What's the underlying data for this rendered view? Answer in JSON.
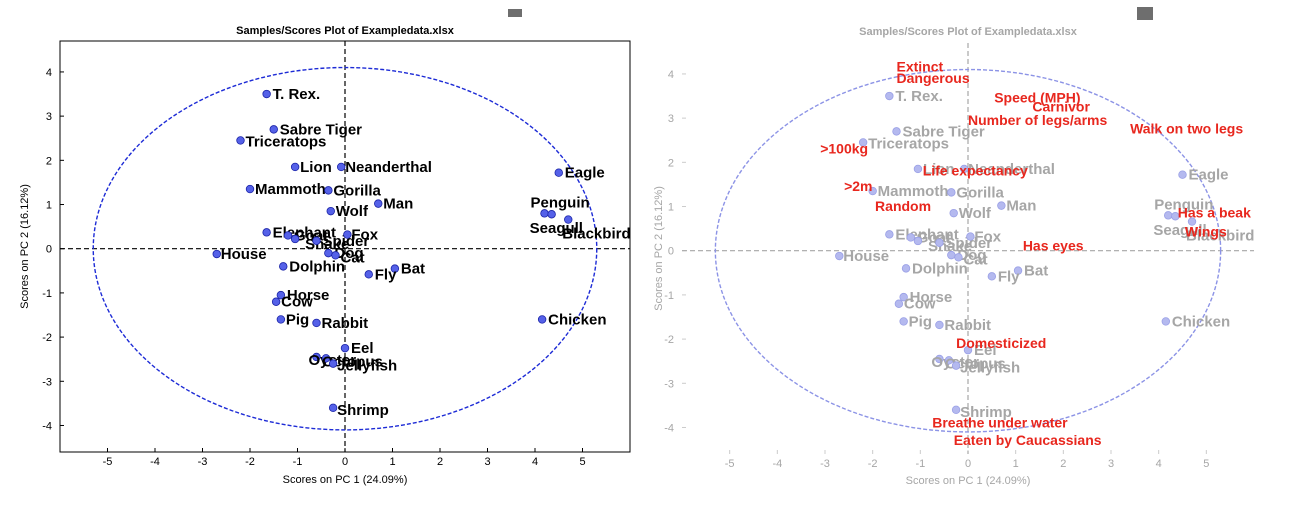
{
  "chart_data": [
    {
      "type": "scatter",
      "title": "Samples/Scores Plot of Exampledata.xlsx",
      "xlabel": "Scores on PC 1 (24.09%)",
      "ylabel": "Scores on PC 2 (16.12%)",
      "xlim": [
        -6,
        6
      ],
      "ylim": [
        -4.6,
        4.7
      ],
      "xticks": [
        "-5",
        "-4",
        "-3",
        "-2",
        "-1",
        "0",
        "1",
        "2",
        "3",
        "4",
        "5"
      ],
      "yticks": [
        "4",
        "3",
        "2",
        "1",
        "0",
        "-1",
        "-2",
        "-3",
        "-4"
      ],
      "colors": {
        "points": "#5561e8",
        "labels": "#000000",
        "ellipse": "#1d2bd6",
        "axes": "#000000"
      },
      "ellipse": {
        "center": [
          0,
          0
        ],
        "rx": 5.3,
        "ry": 4.1
      },
      "points": [
        {
          "label": "T. Rex.",
          "x": -1.65,
          "y": 3.5
        },
        {
          "label": "Sabre Tiger",
          "x": -1.5,
          "y": 2.7
        },
        {
          "label": "Triceratops",
          "x": -2.2,
          "y": 2.45
        },
        {
          "label": "Lion",
          "x": -1.05,
          "y": 1.85
        },
        {
          "label": "Neanderthal",
          "x": -0.08,
          "y": 1.85
        },
        {
          "label": "Mammoth",
          "x": -2.0,
          "y": 1.35
        },
        {
          "label": "Gorilla",
          "x": -0.35,
          "y": 1.32
        },
        {
          "label": "Man",
          "x": 0.7,
          "y": 1.02
        },
        {
          "label": "Wolf",
          "x": -0.3,
          "y": 0.85
        },
        {
          "label": "Eagle",
          "x": 4.5,
          "y": 1.72
        },
        {
          "label": "Penguin",
          "x": 4.2,
          "y": 0.8
        },
        {
          "label": "Seagull",
          "x": 4.35,
          "y": 0.78
        },
        {
          "label": "Blackbird",
          "x": 4.7,
          "y": 0.66
        },
        {
          "label": "Elephant",
          "x": -1.65,
          "y": 0.37
        },
        {
          "label": "Goat",
          "x": -1.2,
          "y": 0.3
        },
        {
          "label": "Snake",
          "x": -1.05,
          "y": 0.22
        },
        {
          "label": "Spider",
          "x": -0.6,
          "y": 0.18
        },
        {
          "label": "Fox",
          "x": 0.05,
          "y": 0.32
        },
        {
          "label": "Dog",
          "x": -0.35,
          "y": -0.1
        },
        {
          "label": "Cat",
          "x": -0.2,
          "y": -0.15
        },
        {
          "label": "House",
          "x": -2.7,
          "y": -0.12
        },
        {
          "label": "Dolphin",
          "x": -1.3,
          "y": -0.4
        },
        {
          "label": "Bat",
          "x": 1.05,
          "y": -0.45
        },
        {
          "label": "Fly",
          "x": 0.5,
          "y": -0.58
        },
        {
          "label": "Horse",
          "x": -1.35,
          "y": -1.05
        },
        {
          "label": "Cow",
          "x": -1.45,
          "y": -1.2
        },
        {
          "label": "Pig",
          "x": -1.35,
          "y": -1.6
        },
        {
          "label": "Rabbit",
          "x": -0.6,
          "y": -1.68
        },
        {
          "label": "Chicken",
          "x": 4.15,
          "y": -1.6
        },
        {
          "label": "Eel",
          "x": 0.0,
          "y": -2.25
        },
        {
          "label": "Oyster",
          "x": -0.6,
          "y": -2.45
        },
        {
          "label": "Octopus",
          "x": -0.4,
          "y": -2.48
        },
        {
          "label": "Jellyfish",
          "x": -0.25,
          "y": -2.6
        },
        {
          "label": "Shrimp",
          "x": -0.25,
          "y": -3.6
        }
      ]
    },
    {
      "type": "scatter",
      "title": "Samples/Scores Plot of Exampledata.xlsx",
      "xlabel": "Scores on PC 1 (24.09%)",
      "ylabel": "Scores on PC 2 (16.12%)",
      "xlim": [
        -6,
        6
      ],
      "ylim": [
        -4.6,
        4.7
      ],
      "xticks": [
        "-5",
        "-4",
        "-3",
        "-2",
        "-1",
        "0",
        "1",
        "2",
        "3",
        "4",
        "5"
      ],
      "yticks": [
        "4",
        "3",
        "2",
        "1",
        "0",
        "-1",
        "-2",
        "-3",
        "-4"
      ],
      "colors": {
        "points": "#b4b9ef",
        "labels": "#a6a6a6",
        "variables": "#e8271e",
        "ellipse": "#8c93e6",
        "axes": "#a6a6a6"
      },
      "ellipse": {
        "center": [
          0,
          0
        ],
        "rx": 5.3,
        "ry": 4.1
      },
      "points_faded": true,
      "variables": [
        {
          "label": "Extinct",
          "x": -1.5,
          "y": 4.05
        },
        {
          "label": "Dangerous",
          "x": -1.5,
          "y": 3.8
        },
        {
          "label": "Speed (MPH)",
          "x": 0.55,
          "y": 3.35
        },
        {
          "label": "Carnivor",
          "x": 1.35,
          "y": 3.15
        },
        {
          "label": "Number of legs/arms",
          "x": 0.0,
          "y": 2.85
        },
        {
          "label": "Walk on two legs",
          "x": 3.4,
          "y": 2.65
        },
        {
          "label": ">100kg",
          "x": -3.1,
          "y": 2.2
        },
        {
          "label": "Life expectancy",
          "x": -0.95,
          "y": 1.7
        },
        {
          "label": ">2m",
          "x": -2.6,
          "y": 1.35
        },
        {
          "label": "Random",
          "x": -1.95,
          "y": 0.9
        },
        {
          "label": "Has a beak",
          "x": 4.4,
          "y": 0.75
        },
        {
          "label": "Wings",
          "x": 4.55,
          "y": 0.32
        },
        {
          "label": "Has eyes",
          "x": 1.15,
          "y": 0.0
        },
        {
          "label": "Domesticized",
          "x": -0.25,
          "y": -2.2
        },
        {
          "label": "Breathe under water",
          "x": -0.75,
          "y": -4.0
        },
        {
          "label": "Eaten by Caucassians",
          "x": -0.3,
          "y": -4.4
        }
      ]
    }
  ]
}
